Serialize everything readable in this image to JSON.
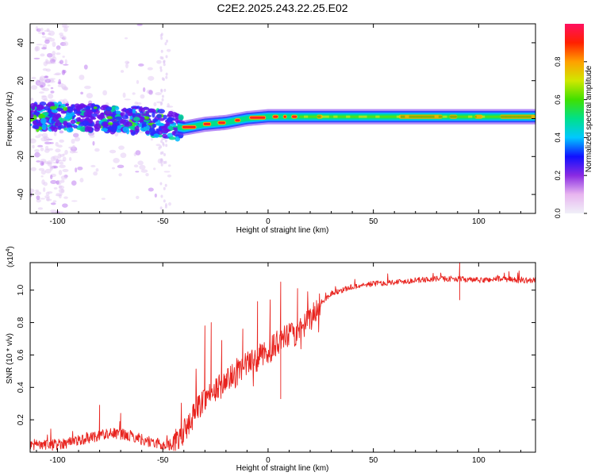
{
  "title": "C2E2.2025.243.22.25.E02",
  "colors": {
    "snr_line": "#e8231e",
    "axis": "#000000",
    "background": "#ffffff"
  },
  "chart_data": [
    {
      "type": "heatmap",
      "name": "spectrogram",
      "xlabel": "Height of straight line (km)",
      "ylabel": "Frequency (Hz)",
      "xlim": [
        -113,
        127
      ],
      "ylim": [
        -50,
        50
      ],
      "xticks": [
        -100,
        -50,
        0,
        50,
        100
      ],
      "yticks": [
        -40,
        -20,
        0,
        20,
        40
      ],
      "colorbar": {
        "label": "Normalized spectral amplitude",
        "range": [
          0,
          1
        ],
        "ticks": [
          "0.0",
          "0.2",
          "0.4",
          "0.6",
          "0.8"
        ],
        "colormap": [
          "#f0f0f8",
          "#e8b6f0",
          "#8a2be2",
          "#1010ff",
          "#00c8ff",
          "#00e08a",
          "#40e000",
          "#d0e800",
          "#ffa000",
          "#ff2000",
          "#ff1060"
        ]
      },
      "trend": [
        {
          "x": -113,
          "f": 1
        },
        {
          "x": -100,
          "f": 1
        },
        {
          "x": -80,
          "f": 0
        },
        {
          "x": -60,
          "f": -1
        },
        {
          "x": -45,
          "f": -4
        },
        {
          "x": -40,
          "f": -5
        },
        {
          "x": -30,
          "f": -3
        },
        {
          "x": -20,
          "f": -2
        },
        {
          "x": -10,
          "f": 0
        },
        {
          "x": 0,
          "f": 1
        },
        {
          "x": 20,
          "f": 1
        },
        {
          "x": 60,
          "f": 1
        },
        {
          "x": 100,
          "f": 1
        },
        {
          "x": 127,
          "f": 1
        }
      ]
    },
    {
      "type": "line",
      "name": "snr",
      "xlabel": "Height of straight line (km)",
      "ylabel": "SNR (10 * v/v)",
      "exponent_label": "(x10",
      "exponent_power": "4",
      "exponent_close": ")",
      "xlim": [
        -113,
        127
      ],
      "ylim": [
        0.0,
        1.17
      ],
      "xticks": [
        -100,
        -50,
        0,
        50,
        100
      ],
      "yticks": [
        0.2,
        0.4,
        0.6,
        0.8,
        1.0
      ],
      "ytick_labels": [
        "0.2",
        "0.4",
        "0.6",
        "0.8",
        "1.0"
      ],
      "series": [
        {
          "name": "SNR",
          "x": [
            -113,
            -105,
            -95,
            -85,
            -75,
            -65,
            -55,
            -48,
            -44,
            -40,
            -35,
            -30,
            -25,
            -20,
            -15,
            -10,
            -5,
            0,
            5,
            10,
            15,
            20,
            25,
            30,
            40,
            50,
            60,
            70,
            80,
            90,
            100,
            110,
            120,
            127
          ],
          "values": [
            0.05,
            0.04,
            0.06,
            0.09,
            0.12,
            0.1,
            0.06,
            0.04,
            0.06,
            0.12,
            0.24,
            0.34,
            0.38,
            0.44,
            0.48,
            0.54,
            0.58,
            0.62,
            0.68,
            0.72,
            0.74,
            0.82,
            0.92,
            0.98,
            1.02,
            1.04,
            1.05,
            1.06,
            1.07,
            1.07,
            1.06,
            1.07,
            1.06,
            1.06
          ]
        }
      ],
      "spikes": [
        {
          "x": -80,
          "y": 0.29
        },
        {
          "x": -70,
          "y": 0.24
        },
        {
          "x": -30,
          "y": 0.78
        },
        {
          "x": -27,
          "y": 0.8
        },
        {
          "x": -22,
          "y": 0.69
        },
        {
          "x": -12,
          "y": 0.76
        },
        {
          "x": -5,
          "y": 0.93
        },
        {
          "x": 1,
          "y": 0.94
        },
        {
          "x": 6,
          "y": 1.05
        },
        {
          "x": 6,
          "y": 0.33
        },
        {
          "x": 14,
          "y": 1.01
        },
        {
          "x": 91,
          "y": 1.17
        },
        {
          "x": 91,
          "y": 0.94
        }
      ]
    }
  ]
}
